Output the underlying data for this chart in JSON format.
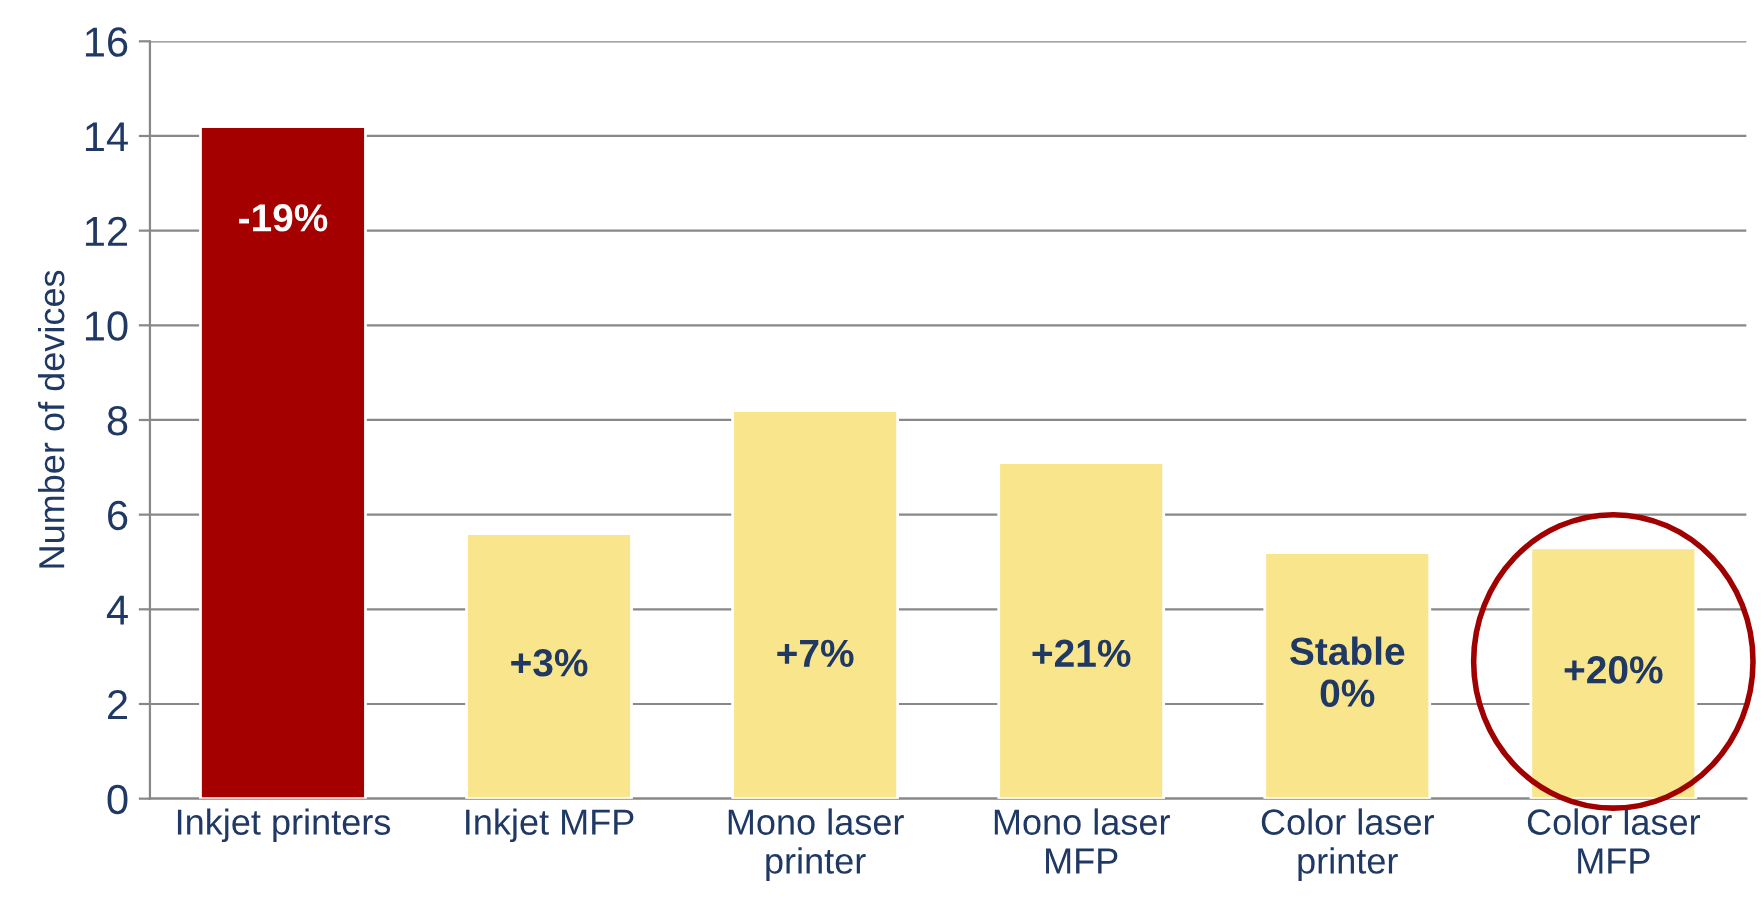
{
  "chart_data": {
    "type": "bar",
    "ylabel": "Number of devices",
    "categories": [
      "Inkjet printers",
      "Inkjet MFP",
      "Mono laser\nprinter",
      "Mono laser\nMFP",
      "Color laser\nprinter",
      "Color laser\nMFP"
    ],
    "values": [
      14.2,
      5.6,
      8.2,
      7.1,
      5.2,
      5.3
    ],
    "colors": [
      "#a50000",
      "#f8e58c",
      "#f8e58c",
      "#f8e58c",
      "#f8e58c",
      "#f8e58c"
    ],
    "ylim": [
      0,
      16
    ],
    "yticks": [
      0,
      2,
      4,
      6,
      8,
      10,
      12,
      14,
      16
    ],
    "grid": "y",
    "legend": false,
    "annotations": [
      "-19%",
      "+3%",
      "+7%",
      "+21%",
      "Stable\n0%",
      "+20%"
    ]
  }
}
